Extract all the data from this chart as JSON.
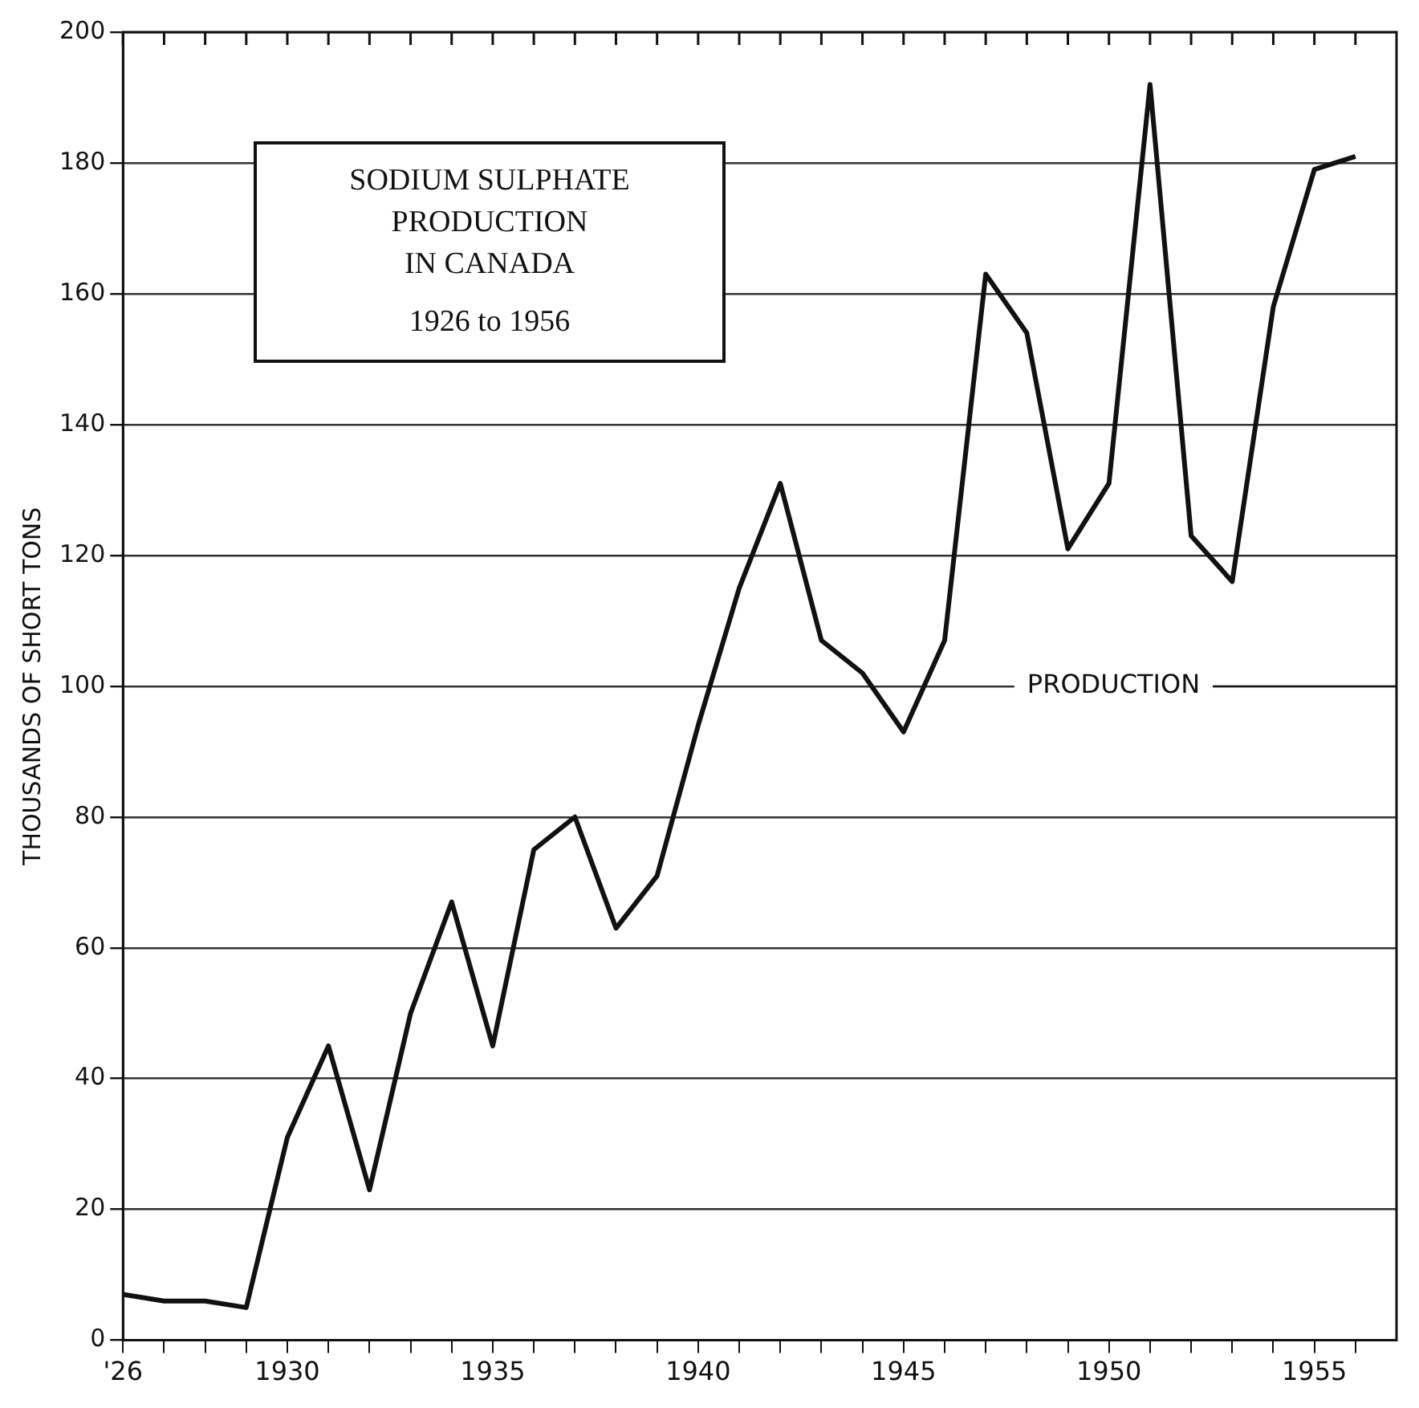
{
  "chart_data": {
    "type": "line",
    "title": "SODIUM SULPHATE\nPRODUCTION\nIN CANADA",
    "subtitle": "1926 to 1956",
    "ylabel": "THOUSANDS OF SHORT TONS",
    "x": [
      1926,
      1927,
      1928,
      1929,
      1930,
      1931,
      1932,
      1933,
      1934,
      1935,
      1936,
      1937,
      1938,
      1939,
      1940,
      1941,
      1942,
      1943,
      1944,
      1945,
      1946,
      1947,
      1948,
      1949,
      1950,
      1951,
      1952,
      1953,
      1954,
      1955,
      1956
    ],
    "series": [
      {
        "name": "PRODUCTION",
        "color": "#111111",
        "values": [
          7,
          6,
          6,
          5,
          31,
          45,
          23,
          50,
          67,
          45,
          75,
          80,
          63,
          71,
          94,
          115,
          131,
          107,
          102,
          93,
          107,
          163,
          154,
          121,
          131,
          192,
          123,
          116,
          158,
          179,
          181
        ]
      }
    ],
    "xlim": [
      1926,
      1957
    ],
    "xticks": [
      {
        "value": 1926,
        "label": "'26"
      },
      {
        "value": 1927,
        "label": null
      },
      {
        "value": 1928,
        "label": null
      },
      {
        "value": 1929,
        "label": null
      },
      1930,
      {
        "value": 1931,
        "label": null
      },
      {
        "value": 1932,
        "label": null
      },
      {
        "value": 1933,
        "label": null
      },
      {
        "value": 1934,
        "label": null
      },
      1935,
      {
        "value": 1936,
        "label": null
      },
      {
        "value": 1937,
        "label": null
      },
      {
        "value": 1938,
        "label": null
      },
      {
        "value": 1939,
        "label": null
      },
      1940,
      {
        "value": 1941,
        "label": null
      },
      {
        "value": 1942,
        "label": null
      },
      {
        "value": 1943,
        "label": null
      },
      {
        "value": 1944,
        "label": null
      },
      1945,
      {
        "value": 1946,
        "label": null
      },
      {
        "value": 1947,
        "label": null
      },
      {
        "value": 1948,
        "label": null
      },
      {
        "value": 1949,
        "label": null
      },
      1950,
      {
        "value": 1951,
        "label": null
      },
      {
        "value": 1952,
        "label": null
      },
      {
        "value": 1953,
        "label": null
      },
      {
        "value": 1954,
        "label": null
      },
      1955,
      {
        "value": 1956,
        "label": null
      }
    ],
    "ylim": [
      0,
      200
    ],
    "yticks": [
      0,
      20,
      40,
      60,
      80,
      100,
      120,
      140,
      160,
      180,
      200
    ],
    "grid": "y",
    "legend": false,
    "marker": "none",
    "line_style": "solid"
  }
}
